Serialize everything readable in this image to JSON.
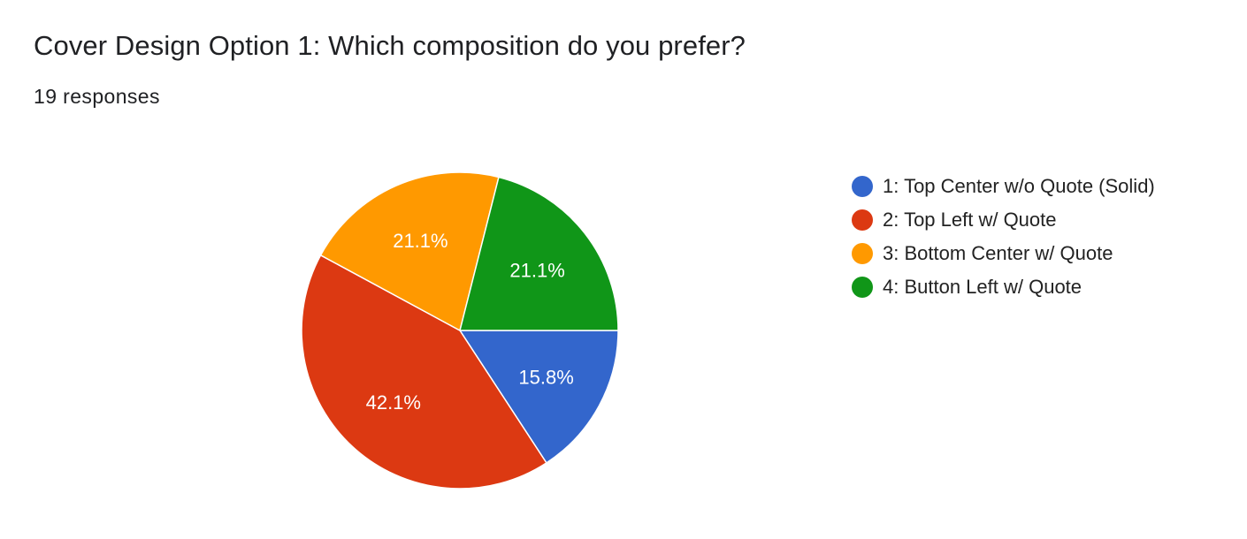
{
  "title": "Cover Design Option 1: Which composition do you prefer?",
  "subtitle": "19 responses",
  "chart_data": {
    "type": "pie",
    "title": "Cover Design Option 1: Which composition do you prefer?",
    "total_responses": 19,
    "legend_position": "right",
    "slices": [
      {
        "label": "1: Top Center w/o Quote (Solid)",
        "value": 3,
        "percent_label": "15.8%",
        "color": "#3366cc"
      },
      {
        "label": "2: Top Left w/ Quote",
        "value": 8,
        "percent_label": "42.1%",
        "color": "#dc3912"
      },
      {
        "label": "3: Bottom Center w/ Quote",
        "value": 4,
        "percent_label": "21.1%",
        "color": "#ff9900"
      },
      {
        "label": "4: Button Left w/ Quote",
        "value": 4,
        "percent_label": "21.1%",
        "color": "#109618"
      }
    ]
  }
}
